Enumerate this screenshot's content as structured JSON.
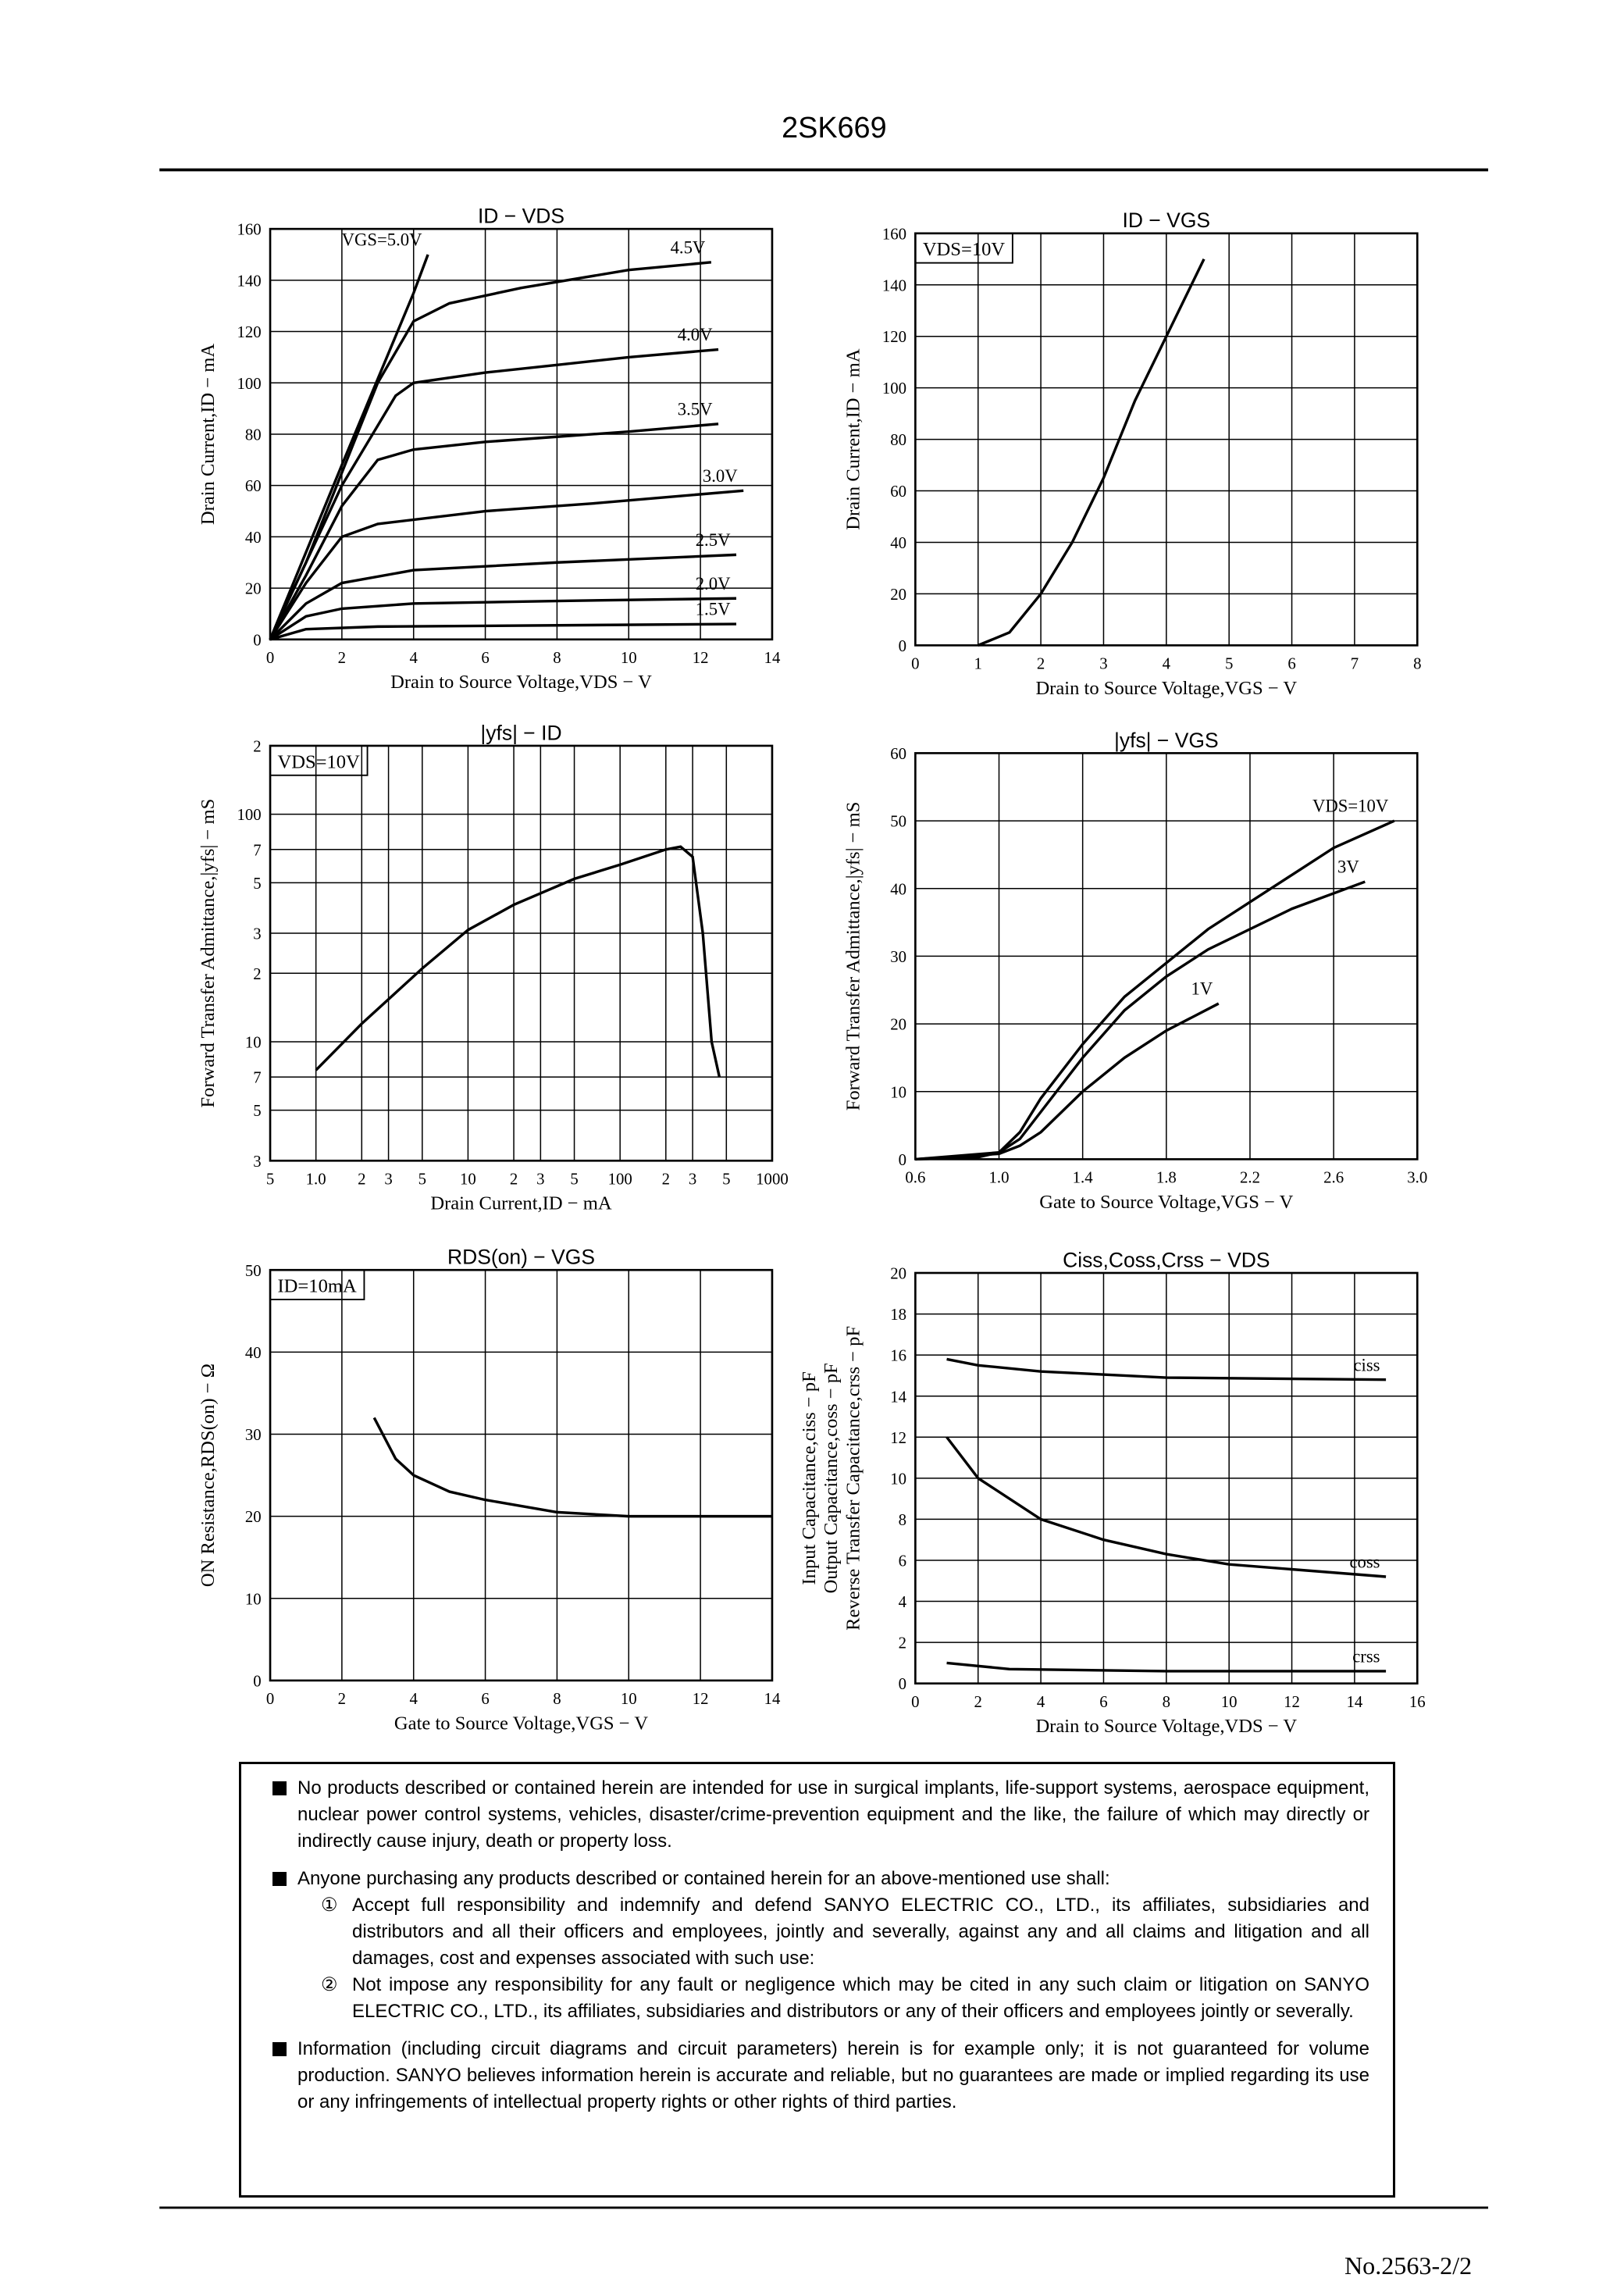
{
  "header": {
    "title": "2SK669"
  },
  "chart_data": [
    {
      "type": "line",
      "title": "ID − VDS",
      "xlabel": "Drain to Source Voltage,VDS − V",
      "ylabel": "Drain Current,ID − mA",
      "xlim": [
        0,
        14
      ],
      "xticks": [
        0,
        2,
        4,
        6,
        8,
        10,
        12,
        14
      ],
      "ylim": [
        0,
        160
      ],
      "yticks": [
        0,
        20,
        40,
        60,
        80,
        100,
        120,
        140,
        160
      ],
      "grid": true,
      "series": [
        {
          "name": "VGS=5.0V",
          "color": "#000000",
          "x": [
            0,
            2,
            4,
            4.4
          ],
          "values": [
            0,
            68,
            135,
            150
          ]
        },
        {
          "name": "4.5V",
          "color": "#000000",
          "x": [
            0,
            1,
            2,
            3,
            4,
            5,
            7,
            10,
            12.3
          ],
          "values": [
            0,
            30,
            65,
            100,
            124,
            131,
            137,
            144,
            147
          ]
        },
        {
          "name": "4.0V",
          "color": "#000000",
          "x": [
            0,
            2,
            3.5,
            4,
            6,
            8,
            10,
            12.5
          ],
          "values": [
            0,
            60,
            95,
            100,
            104,
            107,
            110,
            113
          ]
        },
        {
          "name": "3.5V",
          "color": "#000000",
          "x": [
            0,
            1,
            2,
            3,
            4,
            6,
            8,
            10,
            12.5
          ],
          "values": [
            0,
            25,
            52,
            70,
            74,
            77,
            79,
            81,
            84
          ]
        },
        {
          "name": "3.0V",
          "color": "#000000",
          "x": [
            0,
            1,
            2,
            3,
            6,
            9,
            13.2
          ],
          "values": [
            0,
            22,
            40,
            45,
            50,
            53,
            58
          ]
        },
        {
          "name": "2.5V",
          "color": "#000000",
          "x": [
            0,
            1,
            2,
            4,
            8,
            13
          ],
          "values": [
            0,
            14,
            22,
            27,
            30,
            33
          ]
        },
        {
          "name": "2.0V",
          "color": "#000000",
          "x": [
            0,
            1,
            2,
            4,
            8,
            13
          ],
          "values": [
            0,
            9,
            12,
            14,
            15,
            16
          ]
        },
        {
          "name": "1.5V",
          "color": "#000000",
          "x": [
            0,
            1,
            3,
            13
          ],
          "values": [
            0,
            4,
            5,
            6
          ]
        }
      ]
    },
    {
      "type": "line",
      "title": "ID − VGS",
      "xlabel": "Drain to Source Voltage,VGS − V",
      "ylabel": "Drain Current,ID − mA",
      "annotation": "VDS=10V",
      "xlim": [
        0,
        8
      ],
      "xticks": [
        0,
        1,
        2,
        3,
        4,
        5,
        6,
        7,
        8
      ],
      "ylim": [
        0,
        160
      ],
      "yticks": [
        0,
        20,
        40,
        60,
        80,
        100,
        120,
        140,
        160
      ],
      "grid": true,
      "series": [
        {
          "color": "#000000",
          "x": [
            1,
            1.5,
            2,
            2.5,
            3,
            3.5,
            4,
            4.6
          ],
          "values": [
            0,
            5,
            20,
            40,
            65,
            95,
            120,
            150
          ]
        }
      ]
    },
    {
      "type": "line",
      "title": "|yfs| − ID",
      "xlabel": "Drain Current,ID − mA",
      "ylabel": "Forward Transfer Admittance,|yfs| − mS",
      "annotation": "VDS=10V",
      "xscale": "log",
      "yscale": "log",
      "xlim": [
        0.5,
        1000
      ],
      "xticks": [
        {
          "value": 0.5,
          "label": "5"
        },
        {
          "value": 1,
          "label": "1.0"
        },
        2,
        3,
        5,
        10,
        {
          "value": 20,
          "label": "2"
        },
        {
          "value": 30,
          "label": "3"
        },
        {
          "value": 50,
          "label": "5"
        },
        100,
        {
          "value": 200,
          "label": "2"
        },
        {
          "value": 300,
          "label": "3"
        },
        {
          "value": 500,
          "label": "5"
        },
        1000
      ],
      "ylim": [
        3,
        200
      ],
      "yticks": [
        3,
        5,
        7,
        10,
        {
          "value": 20,
          "label": "2"
        },
        {
          "value": 30,
          "label": "3"
        },
        {
          "value": 50,
          "label": "5"
        },
        {
          "value": 70,
          "label": "7"
        },
        100,
        {
          "value": 200,
          "label": "2"
        }
      ],
      "grid": true,
      "series": [
        {
          "color": "#000000",
          "x": [
            1,
            2,
            5,
            10,
            20,
            50,
            100,
            200,
            250,
            300,
            350,
            400,
            450
          ],
          "values": [
            7.5,
            12,
            21,
            31,
            40,
            52,
            60,
            70,
            72,
            65,
            30,
            10,
            7
          ]
        }
      ]
    },
    {
      "type": "line",
      "title": "|yfs| − VGS",
      "xlabel": "Gate to Source Voltage,VGS − V",
      "ylabel": "Forward Transfer Admittance,|yfs| − mS",
      "xlim": [
        0.6,
        3.0
      ],
      "xticks": [
        0.6,
        {
          "value": 1,
          "label": "1.0"
        },
        1.4,
        1.8,
        2.2,
        2.6,
        {
          "value": 3,
          "label": "3.0"
        }
      ],
      "ylim": [
        0,
        60
      ],
      "yticks": [
        0,
        10,
        20,
        30,
        40,
        50,
        60
      ],
      "grid": true,
      "series": [
        {
          "name": "VDS=10V",
          "color": "#000000",
          "x": [
            0.6,
            0.9,
            1.0,
            1.1,
            1.2,
            1.4,
            1.6,
            1.8,
            2.0,
            2.2,
            2.4,
            2.6,
            2.89
          ],
          "values": [
            0,
            0.3,
            1,
            4,
            9,
            17,
            24,
            29,
            34,
            38,
            42,
            46,
            50
          ]
        },
        {
          "name": "3V",
          "color": "#000000",
          "x": [
            0.6,
            1.0,
            1.1,
            1.2,
            1.4,
            1.6,
            1.8,
            2.0,
            2.2,
            2.4,
            2.75
          ],
          "values": [
            0,
            1,
            3,
            7,
            15,
            22,
            27,
            31,
            34,
            37,
            41
          ]
        },
        {
          "name": "1V",
          "color": "#000000",
          "x": [
            0.6,
            1.0,
            1.1,
            1.2,
            1.4,
            1.6,
            1.8,
            2.05
          ],
          "values": [
            0,
            0.8,
            2,
            4,
            10,
            15,
            19,
            23
          ]
        }
      ]
    },
    {
      "type": "line",
      "title": "RDS(on) − VGS",
      "xlabel": "Gate to Source Voltage,VGS − V",
      "ylabel": "ON Resistance,RDS(on) − Ω",
      "annotation": "ID=10mA",
      "xlim": [
        0,
        14
      ],
      "xticks": [
        0,
        2,
        4,
        6,
        8,
        10,
        12,
        14
      ],
      "ylim": [
        0,
        50
      ],
      "yticks": [
        0,
        10,
        20,
        30,
        40,
        50
      ],
      "grid": true,
      "series": [
        {
          "color": "#000000",
          "x": [
            2.9,
            3.5,
            4,
            5,
            6,
            8,
            10,
            14
          ],
          "values": [
            32,
            27,
            25,
            23,
            22,
            20.5,
            20,
            20
          ]
        }
      ]
    },
    {
      "type": "line",
      "title": "Ciss,Coss,Crss − VDS",
      "xlabel": "Drain to Source Voltage,VDS − V",
      "ylabel": [
        "Input Capacitance,ciss − pF",
        "Output Capacitance,coss − pF",
        "Reverse Transfer Capacitance,crss − pF"
      ],
      "xlim": [
        0,
        16
      ],
      "xticks": [
        0,
        2,
        4,
        6,
        8,
        10,
        12,
        14,
        16
      ],
      "ylim": [
        0,
        20
      ],
      "yticks": [
        0,
        2,
        4,
        6,
        8,
        10,
        12,
        14,
        16,
        18,
        20
      ],
      "grid": true,
      "series": [
        {
          "name": "ciss",
          "color": "#000000",
          "x": [
            1,
            2,
            4,
            8,
            15
          ],
          "values": [
            15.8,
            15.5,
            15.2,
            14.9,
            14.8
          ]
        },
        {
          "name": "coss",
          "color": "#000000",
          "x": [
            1,
            2,
            4,
            6,
            8,
            10,
            15
          ],
          "values": [
            12,
            10,
            8,
            7,
            6.3,
            5.8,
            5.2
          ]
        },
        {
          "name": "crss",
          "color": "#000000",
          "x": [
            1,
            3,
            8,
            15
          ],
          "values": [
            1,
            0.7,
            0.6,
            0.6
          ]
        }
      ]
    }
  ],
  "notice": {
    "items": [
      {
        "text": "No products described or contained herein are intended for use in surgical implants, life-support systems, aerospace equipment, nuclear power control systems, vehicles, disaster/crime-prevention equipment and the like, the failure of which may directly or indirectly cause injury, death or property loss."
      },
      {
        "text": "Anyone purchasing any products described or contained herein for an above-mentioned use shall:",
        "subitems": [
          {
            "marker": "①",
            "text": "Accept full responsibility and indemnify and defend SANYO ELECTRIC CO., LTD., its affiliates, subsidiaries and distributors and all their officers and employees, jointly and severally, against any and all claims and litigation and all damages, cost and expenses associated with such use:"
          },
          {
            "marker": "②",
            "text": "Not impose any responsibility for any fault or negligence which may be cited in any such claim or litigation on SANYO ELECTRIC CO., LTD., its affiliates, subsidiaries and distributors or any of their officers and employees jointly or severally."
          }
        ]
      },
      {
        "text": "Information (including circuit diagrams and circuit parameters) herein is for example only; it is not guaranteed for volume production. SANYO believes information herein is accurate and reliable, but no guarantees are made or implied regarding its use or any infringements of intellectual property rights or other rights of third parties."
      }
    ]
  },
  "footer": {
    "doc_number": "No.2563-2/2"
  }
}
